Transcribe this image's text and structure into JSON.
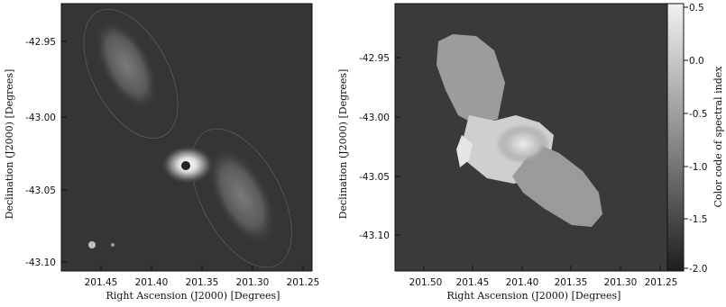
{
  "left_panel": {
    "ylabel": "Declination (J2000) [Degrees]",
    "xlabel": "Right Ascension (J2000) [Degrees]",
    "yticks": [
      "-42.95",
      "-43.00",
      "-43.05",
      "-43.10"
    ],
    "xticks": [
      "201.45",
      "201.40",
      "201.35",
      "201.30",
      "201.25"
    ]
  },
  "right_panel": {
    "ylabel": "Declination (J2000) [Degrees]",
    "xlabel": "Right Ascension (J2000) [Degrees]",
    "yticks": [
      "-42.95",
      "-43.00",
      "-43.05",
      "-43.10"
    ],
    "xticks": [
      "201.50",
      "201.45",
      "201.40",
      "201.35",
      "201.30",
      "201.25"
    ]
  },
  "colorbar": {
    "label": "Color code of spectral index",
    "ticks": [
      "0.5",
      "0.0",
      "-0.5",
      "-1.0",
      "-1.5",
      "-2.0"
    ]
  }
}
